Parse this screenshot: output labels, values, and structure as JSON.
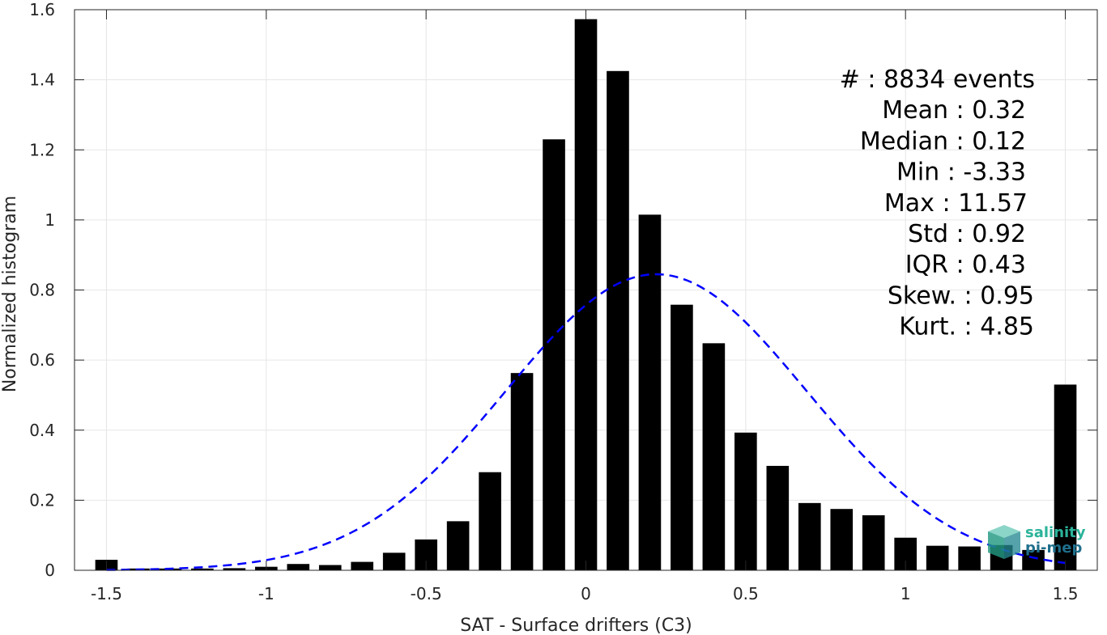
{
  "chart_data": {
    "type": "bar",
    "xlabel": "SAT - Surface drifters (C3)",
    "ylabel": "Normalized histogram",
    "xlim": [
      -1.6,
      1.6
    ],
    "ylim": [
      0,
      1.6
    ],
    "xticks": [
      -1.5,
      -1,
      -0.5,
      0,
      0.5,
      1,
      1.5
    ],
    "xtick_labels": [
      "-1.5",
      "-1",
      "-0.5",
      "0",
      "0.5",
      "1",
      "1.5"
    ],
    "yticks": [
      0,
      0.2,
      0.4,
      0.6,
      0.8,
      1,
      1.2,
      1.4,
      1.6
    ],
    "ytick_labels": [
      "0",
      "0.2",
      "0.4",
      "0.6",
      "0.8",
      "1",
      "1.2",
      "1.4",
      "1.6"
    ],
    "grid": true,
    "bar_color": "#000000",
    "bar_width": 0.07,
    "x": [
      -1.5,
      -1.4,
      -1.3,
      -1.2,
      -1.1,
      -1.0,
      -0.9,
      -0.8,
      -0.7,
      -0.6,
      -0.5,
      -0.4,
      -0.3,
      -0.2,
      -0.1,
      0.0,
      0.1,
      0.2,
      0.3,
      0.4,
      0.5,
      0.6,
      0.7,
      0.8,
      0.9,
      1.0,
      1.1,
      1.2,
      1.3,
      1.4,
      1.5
    ],
    "values": [
      0.03,
      0.005,
      0.005,
      0.005,
      0.006,
      0.01,
      0.018,
      0.015,
      0.024,
      0.05,
      0.088,
      0.14,
      0.28,
      0.563,
      1.23,
      1.573,
      1.425,
      1.015,
      0.758,
      0.648,
      0.393,
      0.298,
      0.192,
      0.175,
      0.157,
      0.093,
      0.07,
      0.068,
      0.072,
      0.058,
      0.53
    ],
    "fit_curve": {
      "type": "normal",
      "mean": 0.22,
      "peak": 0.845,
      "sigma": 0.47,
      "color": "#0000ff",
      "style": "dashed",
      "x_range": [
        -1.5,
        1.5
      ]
    },
    "stats": [
      "#  : 8834 events",
      "Mean : 0.32",
      "Median : 0.12",
      "Min : -3.33",
      "Max : 11.57",
      "Std : 0.92",
      "IQR : 0.43",
      "Skew. : 0.95",
      "Kurt. : 4.85"
    ]
  },
  "logo": {
    "line1": "salinity",
    "line2": "pi-mep"
  }
}
